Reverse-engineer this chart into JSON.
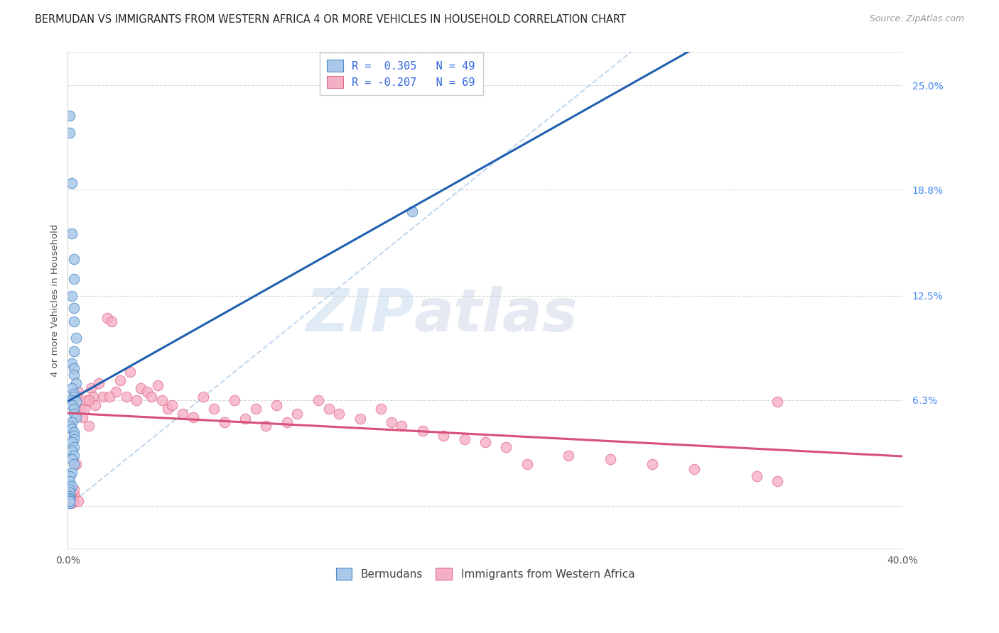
{
  "title": "BERMUDAN VS IMMIGRANTS FROM WESTERN AFRICA 4 OR MORE VEHICLES IN HOUSEHOLD CORRELATION CHART",
  "source": "Source: ZipAtlas.com",
  "ylabel": "4 or more Vehicles in Household",
  "xlim": [
    0.0,
    0.4
  ],
  "ylim": [
    -0.025,
    0.27
  ],
  "blue_color": "#aac8e8",
  "pink_color": "#f5afc5",
  "blue_edge": "#4a8ac8",
  "pink_edge": "#e06888",
  "blue_line": "#2060b0",
  "pink_line": "#d8507a",
  "diag_color": "#c0d8ee",
  "grid_color": "#d8d8d8",
  "legend_R_blue": "R =  0.305",
  "legend_N_blue": "N = 49",
  "legend_R_pink": "R = -0.207",
  "legend_N_pink": "N = 69",
  "legend_label_blue": "Bermudans",
  "legend_label_pink": "Immigrants from Western Africa",
  "right_y_ticks": [
    0.0,
    0.063,
    0.125,
    0.188,
    0.25
  ],
  "right_y_labels": [
    "",
    "6.3%",
    "12.5%",
    "18.8%",
    "25.0%"
  ],
  "x_tick_positions": [
    0.0,
    0.1,
    0.2,
    0.3,
    0.4
  ],
  "x_tick_labels": [
    "0.0%",
    "",
    "",
    "",
    "40.0%"
  ],
  "bermudans_x": [
    0.001,
    0.001,
    0.002,
    0.002,
    0.003,
    0.003,
    0.002,
    0.003,
    0.003,
    0.004,
    0.003,
    0.002,
    0.003,
    0.003,
    0.004,
    0.002,
    0.003,
    0.003,
    0.002,
    0.004,
    0.002,
    0.003,
    0.003,
    0.004,
    0.002,
    0.001,
    0.002,
    0.003,
    0.003,
    0.003,
    0.002,
    0.003,
    0.002,
    0.003,
    0.002,
    0.003,
    0.002,
    0.001,
    0.001,
    0.002,
    0.001,
    0.001,
    0.001,
    0.001,
    0.001,
    0.001,
    0.001,
    0.001,
    0.165
  ],
  "bermudans_y": [
    0.232,
    0.222,
    0.192,
    0.162,
    0.147,
    0.135,
    0.125,
    0.118,
    0.11,
    0.1,
    0.092,
    0.085,
    0.082,
    0.078,
    0.073,
    0.07,
    0.067,
    0.065,
    0.063,
    0.062,
    0.06,
    0.058,
    0.055,
    0.053,
    0.05,
    0.048,
    0.046,
    0.044,
    0.042,
    0.04,
    0.038,
    0.035,
    0.033,
    0.03,
    0.028,
    0.025,
    0.02,
    0.018,
    0.015,
    0.012,
    0.01,
    0.008,
    0.006,
    0.005,
    0.004,
    0.003,
    0.002,
    0.003,
    0.175
  ],
  "immigrants_x": [
    0.001,
    0.002,
    0.002,
    0.003,
    0.003,
    0.004,
    0.005,
    0.005,
    0.006,
    0.007,
    0.008,
    0.009,
    0.01,
    0.011,
    0.012,
    0.013,
    0.015,
    0.017,
    0.019,
    0.021,
    0.023,
    0.025,
    0.028,
    0.03,
    0.033,
    0.035,
    0.038,
    0.04,
    0.043,
    0.045,
    0.048,
    0.05,
    0.055,
    0.06,
    0.065,
    0.07,
    0.075,
    0.08,
    0.085,
    0.09,
    0.095,
    0.1,
    0.105,
    0.11,
    0.12,
    0.125,
    0.13,
    0.14,
    0.15,
    0.155,
    0.16,
    0.17,
    0.18,
    0.19,
    0.2,
    0.21,
    0.22,
    0.24,
    0.26,
    0.28,
    0.3,
    0.33,
    0.34,
    0.002,
    0.003,
    0.004,
    0.01,
    0.02,
    0.34
  ],
  "immigrants_y": [
    0.003,
    0.002,
    0.005,
    0.003,
    0.007,
    0.065,
    0.003,
    0.068,
    0.058,
    0.053,
    0.058,
    0.063,
    0.048,
    0.07,
    0.065,
    0.06,
    0.073,
    0.065,
    0.112,
    0.11,
    0.068,
    0.075,
    0.065,
    0.08,
    0.063,
    0.07,
    0.068,
    0.065,
    0.072,
    0.063,
    0.058,
    0.06,
    0.055,
    0.053,
    0.065,
    0.058,
    0.05,
    0.063,
    0.052,
    0.058,
    0.048,
    0.06,
    0.05,
    0.055,
    0.063,
    0.058,
    0.055,
    0.052,
    0.058,
    0.05,
    0.048,
    0.045,
    0.042,
    0.04,
    0.038,
    0.035,
    0.025,
    0.03,
    0.028,
    0.025,
    0.022,
    0.018,
    0.015,
    0.008,
    0.01,
    0.025,
    0.063,
    0.065,
    0.062
  ]
}
